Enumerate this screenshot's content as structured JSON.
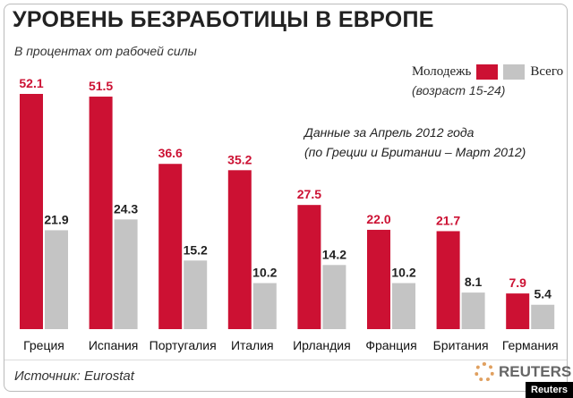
{
  "title": "УРОВЕНЬ БЕЗРАБОТИЦЫ В ЕВРОПЕ",
  "subtitle": "В процентах от рабочей силы",
  "note_line1": "Данные за Апрель 2012 года",
  "note_line2": "(по Греции и Британии – Март 2012)",
  "source": "Источник: Eurostat",
  "logo": "REUTERS",
  "credit": "Reuters",
  "legend_sub": "(возраст 15-24)",
  "colors": {
    "youth": "#cc1133",
    "total": "#c4c4c4"
  },
  "chart_data": {
    "type": "bar",
    "categories": [
      "Греция",
      "Испания",
      "Португалия",
      "Италия",
      "Ирландия",
      "Франция",
      "Британия",
      "Германия"
    ],
    "series": [
      {
        "name": "Молодежь",
        "values": [
          52.1,
          51.5,
          36.6,
          35.2,
          27.5,
          22.0,
          21.7,
          7.9
        ]
      },
      {
        "name": "Всего",
        "values": [
          21.9,
          24.3,
          15.2,
          10.2,
          14.2,
          10.2,
          8.1,
          5.4
        ]
      }
    ],
    "ylim": [
      0,
      55
    ],
    "grid": false,
    "legend": "top-right"
  }
}
